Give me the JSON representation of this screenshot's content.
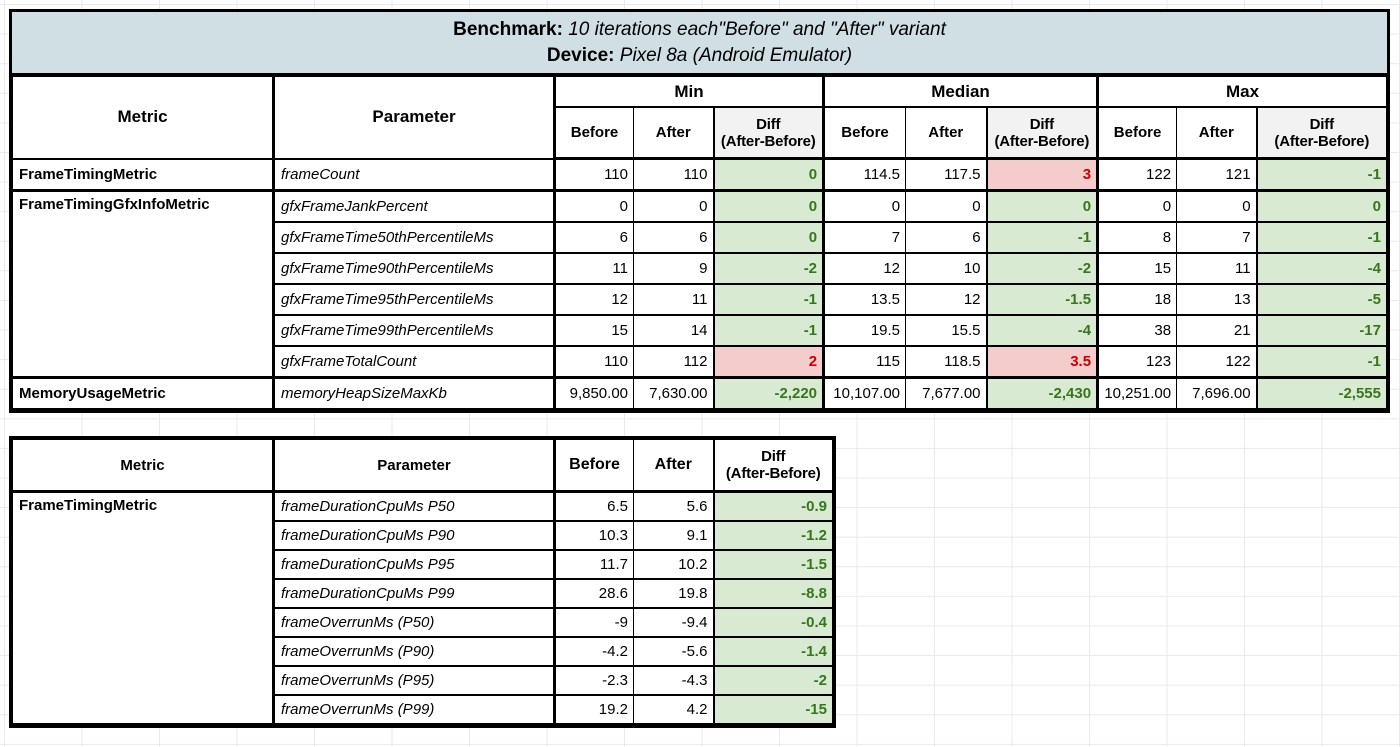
{
  "labels": {
    "metric": "Metric",
    "parameter": "Parameter",
    "before": "Before",
    "after": "After",
    "diff_line1": "Diff",
    "diff_line2": "(After-Before)"
  },
  "title": {
    "benchmark_label": "Benchmark:",
    "benchmark_text": " 10 iterations each\"Before\" and \"After\" variant",
    "device_label": "Device:",
    "device_text": " Pixel 8a (Android Emulator)"
  },
  "colors": {
    "header_bg": "#d0dfe4",
    "diff_header_bg": "#f2f2f2",
    "diff_negative_bg": "#d9ead3",
    "diff_negative_text": "#38761d",
    "diff_positive_bg": "#f4cccc",
    "diff_positive_text": "#cc0000",
    "border": "#000000"
  },
  "table1": {
    "groups": [
      "Min",
      "Median",
      "Max"
    ],
    "rows": [
      {
        "metric": "FrameTimingMetric",
        "metric_rowspan": 1,
        "parameter": "frameCount",
        "values": [
          "110",
          "110",
          "0",
          "114.5",
          "117.5",
          "3",
          "122",
          "121",
          "-1"
        ]
      },
      {
        "metric": "FrameTimingGfxInfoMetric",
        "metric_rowspan": 6,
        "block_start": true,
        "parameter": "gfxFrameJankPercent",
        "values": [
          "0",
          "0",
          "0",
          "0",
          "0",
          "0",
          "0",
          "0",
          "0"
        ]
      },
      {
        "parameter": "gfxFrameTime50thPercentileMs",
        "values": [
          "6",
          "6",
          "0",
          "7",
          "6",
          "-1",
          "8",
          "7",
          "-1"
        ]
      },
      {
        "parameter": "gfxFrameTime90thPercentileMs",
        "values": [
          "11",
          "9",
          "-2",
          "12",
          "10",
          "-2",
          "15",
          "11",
          "-4"
        ]
      },
      {
        "parameter": "gfxFrameTime95thPercentileMs",
        "values": [
          "12",
          "11",
          "-1",
          "13.5",
          "12",
          "-1.5",
          "18",
          "13",
          "-5"
        ]
      },
      {
        "parameter": "gfxFrameTime99thPercentileMs",
        "values": [
          "15",
          "14",
          "-1",
          "19.5",
          "15.5",
          "-4",
          "38",
          "21",
          "-17"
        ]
      },
      {
        "parameter": "gfxFrameTotalCount",
        "values": [
          "110",
          "112",
          "2",
          "115",
          "118.5",
          "3.5",
          "123",
          "122",
          "-1"
        ]
      },
      {
        "metric": "MemoryUsageMetric",
        "metric_rowspan": 1,
        "block_start": true,
        "parameter": "memoryHeapSizeMaxKb",
        "values": [
          "9,850.00",
          "7,630.00",
          "-2,220",
          "10,107.00",
          "7,677.00",
          "-2,430",
          "10,251.00",
          "7,696.00",
          "-2,555"
        ]
      }
    ]
  },
  "table2": {
    "rows": [
      {
        "metric": "FrameTimingMetric",
        "metric_rowspan": 8,
        "parameter": "frameDurationCpuMs P50",
        "values": [
          "6.5",
          "5.6",
          "-0.9"
        ]
      },
      {
        "parameter": "frameDurationCpuMs P90",
        "values": [
          "10.3",
          "9.1",
          "-1.2"
        ]
      },
      {
        "parameter": "frameDurationCpuMs P95",
        "values": [
          "11.7",
          "10.2",
          "-1.5"
        ]
      },
      {
        "parameter": "frameDurationCpuMs P99",
        "values": [
          "28.6",
          "19.8",
          "-8.8"
        ]
      },
      {
        "parameter": "frameOverrunMs (P50)",
        "values": [
          "-9",
          "-9.4",
          "-0.4"
        ]
      },
      {
        "parameter": "frameOverrunMs (P90)",
        "values": [
          "-4.2",
          "-5.6",
          "-1.4"
        ]
      },
      {
        "parameter": "frameOverrunMs (P95)",
        "values": [
          "-2.3",
          "-4.3",
          "-2"
        ]
      },
      {
        "parameter": "frameOverrunMs (P99)",
        "values": [
          "19.2",
          "4.2",
          "-15"
        ]
      }
    ]
  }
}
